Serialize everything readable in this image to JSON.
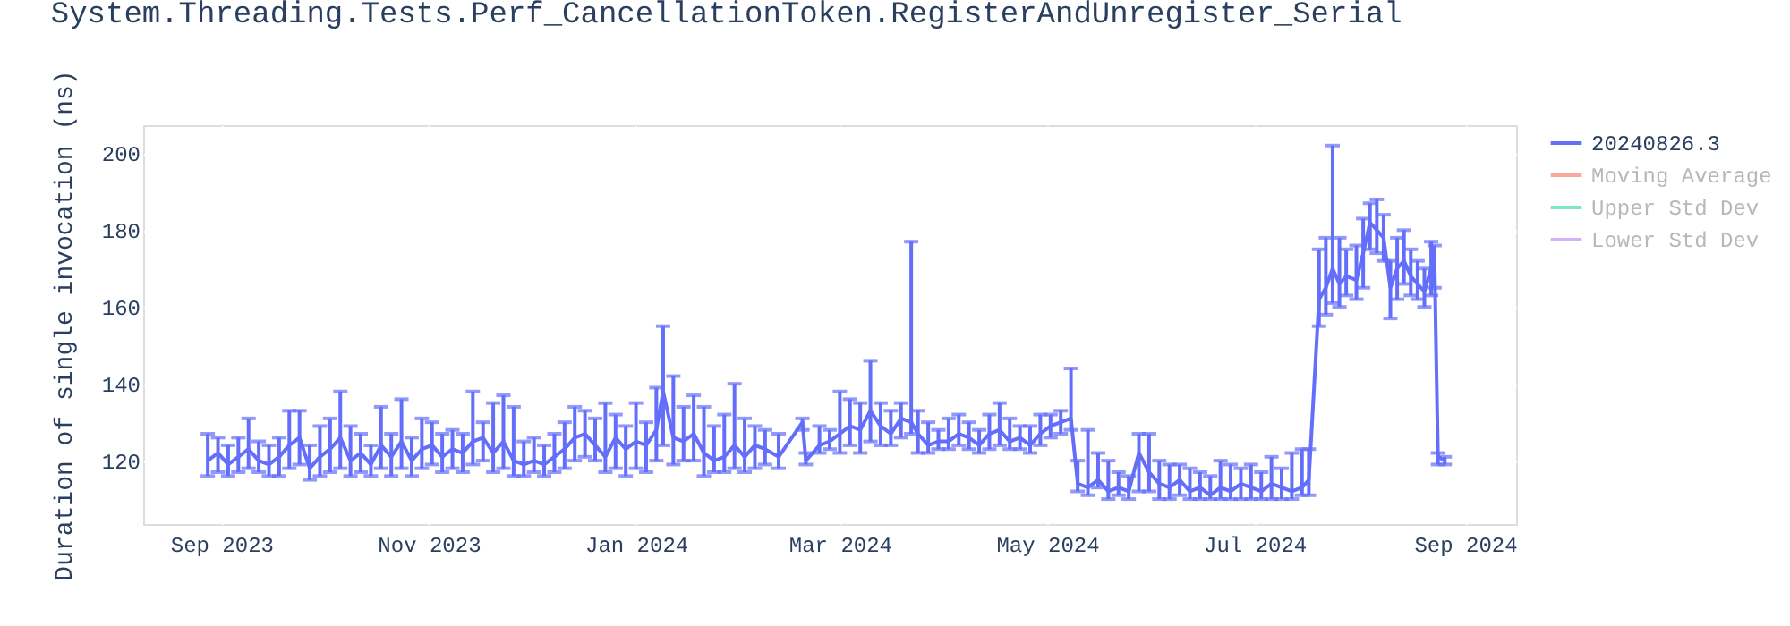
{
  "chart_data": {
    "type": "line",
    "title": "System.Threading.Tests.Perf_CancellationToken.RegisterAndUnregister_Serial",
    "ylabel": "Duration of single invocation (ns)",
    "xlim": [
      "2023-08-09",
      "2024-09-16"
    ],
    "xticks": [
      {
        "value": "2023-09-01",
        "label": "Sep 2023"
      },
      {
        "value": "2023-11-01",
        "label": "Nov 2023"
      },
      {
        "value": "2024-01-01",
        "label": "Jan 2024"
      },
      {
        "value": "2024-03-01",
        "label": "Mar 2024"
      },
      {
        "value": "2024-05-01",
        "label": "May 2024"
      },
      {
        "value": "2024-07-01",
        "label": "Jul 2024"
      },
      {
        "value": "2024-09-01",
        "label": "Sep 2024"
      }
    ],
    "ylim": [
      103.5,
      207.3
    ],
    "yticks": [
      120,
      140,
      160,
      180,
      200
    ],
    "grid": true,
    "legend": "right",
    "marker": "none",
    "line_style": "solid",
    "series": [
      {
        "name": "20240826.3",
        "color": "#636efa",
        "x": [
          "2023-08-28",
          "2023-08-31",
          "2023-09-03",
          "2023-09-06",
          "2023-09-09",
          "2023-09-12",
          "2023-09-15",
          "2023-09-18",
          "2023-09-21",
          "2023-09-24",
          "2023-09-27",
          "2023-09-30",
          "2023-10-03",
          "2023-10-06",
          "2023-10-09",
          "2023-10-12",
          "2023-10-15",
          "2023-10-18",
          "2023-10-21",
          "2023-10-24",
          "2023-10-27",
          "2023-10-30",
          "2023-11-02",
          "2023-11-05",
          "2023-11-08",
          "2023-11-11",
          "2023-11-14",
          "2023-11-17",
          "2023-11-20",
          "2023-11-23",
          "2023-11-26",
          "2023-11-29",
          "2023-12-02",
          "2023-12-05",
          "2023-12-08",
          "2023-12-11",
          "2023-12-14",
          "2023-12-17",
          "2023-12-20",
          "2023-12-23",
          "2023-12-26",
          "2023-12-29",
          "2024-01-01",
          "2024-01-04",
          "2024-01-07",
          "2024-01-09",
          "2024-01-12",
          "2024-01-15",
          "2024-01-18",
          "2024-01-21",
          "2024-01-24",
          "2024-01-27",
          "2024-01-30",
          "2024-02-02",
          "2024-02-05",
          "2024-02-08",
          "2024-02-12",
          "2024-02-19",
          "2024-02-20",
          "2024-02-24",
          "2024-02-27",
          "2024-03-01",
          "2024-03-04",
          "2024-03-07",
          "2024-03-10",
          "2024-03-13",
          "2024-03-16",
          "2024-03-19",
          "2024-03-22",
          "2024-03-24",
          "2024-03-27",
          "2024-03-30",
          "2024-04-02",
          "2024-04-05",
          "2024-04-08",
          "2024-04-11",
          "2024-04-14",
          "2024-04-17",
          "2024-04-20",
          "2024-04-23",
          "2024-04-26",
          "2024-04-29",
          "2024-05-02",
          "2024-05-05",
          "2024-05-08",
          "2024-05-10",
          "2024-05-13",
          "2024-05-16",
          "2024-05-19",
          "2024-05-22",
          "2024-05-25",
          "2024-05-28",
          "2024-05-31",
          "2024-06-03",
          "2024-06-06",
          "2024-06-09",
          "2024-06-12",
          "2024-06-15",
          "2024-06-18",
          "2024-06-21",
          "2024-06-24",
          "2024-06-27",
          "2024-06-30",
          "2024-07-03",
          "2024-07-06",
          "2024-07-09",
          "2024-07-12",
          "2024-07-15",
          "2024-07-17",
          "2024-07-20",
          "2024-07-22",
          "2024-07-24",
          "2024-07-26",
          "2024-07-28",
          "2024-07-31",
          "2024-08-02",
          "2024-08-04",
          "2024-08-06",
          "2024-08-08",
          "2024-08-10",
          "2024-08-12",
          "2024-08-14",
          "2024-08-16",
          "2024-08-18",
          "2024-08-20",
          "2024-08-22",
          "2024-08-23",
          "2024-08-24",
          "2024-08-26"
        ],
        "values": [
          120,
          122,
          119,
          121,
          123,
          120,
          119,
          121,
          124,
          126,
          118,
          121,
          123,
          126,
          120,
          122,
          119,
          124,
          121,
          125,
          120,
          123,
          124,
          121,
          123,
          122,
          125,
          126,
          122,
          125,
          120,
          119,
          120,
          119,
          121,
          123,
          126,
          127,
          124,
          121,
          126,
          123,
          125,
          124,
          128,
          138,
          126,
          125,
          127,
          122,
          120,
          121,
          124,
          121,
          124,
          123,
          121,
          130,
          120,
          124,
          125,
          127,
          129,
          128,
          133,
          129,
          127,
          131,
          130,
          127,
          124,
          125,
          125,
          127,
          126,
          124,
          127,
          128,
          125,
          126,
          124,
          127,
          129,
          130,
          131,
          114,
          113,
          115,
          112,
          113,
          112,
          122,
          117,
          114,
          113,
          115,
          112,
          113,
          111,
          113,
          112,
          114,
          113,
          112,
          114,
          113,
          112,
          113,
          115,
          162,
          165,
          170,
          166,
          168,
          167,
          174,
          182,
          180,
          178,
          165,
          170,
          172,
          168,
          166,
          164,
          170,
          172,
          121,
          120
        ],
        "errors": [
          [
            116,
            127
          ],
          [
            117,
            126
          ],
          [
            116,
            124
          ],
          [
            117,
            126
          ],
          [
            118,
            131
          ],
          [
            117,
            125
          ],
          [
            116,
            124
          ],
          [
            116,
            126
          ],
          [
            118,
            133
          ],
          [
            119,
            133
          ],
          [
            115,
            124
          ],
          [
            116,
            129
          ],
          [
            117,
            131
          ],
          [
            118,
            138
          ],
          [
            116,
            129
          ],
          [
            117,
            127
          ],
          [
            116,
            124
          ],
          [
            118,
            134
          ],
          [
            116,
            127
          ],
          [
            118,
            136
          ],
          [
            116,
            126
          ],
          [
            118,
            131
          ],
          [
            119,
            130
          ],
          [
            117,
            127
          ],
          [
            118,
            128
          ],
          [
            117,
            127
          ],
          [
            119,
            138
          ],
          [
            120,
            130
          ],
          [
            117,
            135
          ],
          [
            118,
            137
          ],
          [
            116,
            134
          ],
          [
            116,
            125
          ],
          [
            117,
            126
          ],
          [
            116,
            124
          ],
          [
            117,
            127
          ],
          [
            118,
            130
          ],
          [
            120,
            134
          ],
          [
            121,
            133
          ],
          [
            120,
            131
          ],
          [
            117,
            135
          ],
          [
            118,
            132
          ],
          [
            116,
            129
          ],
          [
            118,
            135
          ],
          [
            117,
            130
          ],
          [
            120,
            139
          ],
          [
            124,
            155
          ],
          [
            119,
            142
          ],
          [
            120,
            134
          ],
          [
            120,
            137
          ],
          [
            116,
            134
          ],
          [
            117,
            129
          ],
          [
            117,
            132
          ],
          [
            118,
            140
          ],
          [
            117,
            131
          ],
          [
            118,
            129
          ],
          [
            119,
            128
          ],
          [
            118,
            127
          ],
          [
            128,
            131
          ],
          [
            119,
            122
          ],
          [
            122,
            129
          ],
          [
            123,
            128
          ],
          [
            122,
            138
          ],
          [
            124,
            136
          ],
          [
            122,
            135
          ],
          [
            125,
            146
          ],
          [
            124,
            135
          ],
          [
            124,
            133
          ],
          [
            126,
            135
          ],
          [
            127,
            177
          ],
          [
            122,
            133
          ],
          [
            122,
            130
          ],
          [
            123,
            128
          ],
          [
            123,
            131
          ],
          [
            124,
            132
          ],
          [
            123,
            130
          ],
          [
            122,
            128
          ],
          [
            123,
            132
          ],
          [
            124,
            135
          ],
          [
            123,
            131
          ],
          [
            123,
            129
          ],
          [
            122,
            129
          ],
          [
            124,
            132
          ],
          [
            126,
            132
          ],
          [
            127,
            133
          ],
          [
            128,
            144
          ],
          [
            112,
            120
          ],
          [
            111,
            128
          ],
          [
            113,
            122
          ],
          [
            110,
            120
          ],
          [
            111,
            117
          ],
          [
            110,
            116
          ],
          [
            112,
            127
          ],
          [
            112,
            127
          ],
          [
            110,
            120
          ],
          [
            110,
            119
          ],
          [
            111,
            119
          ],
          [
            110,
            118
          ],
          [
            110,
            117
          ],
          [
            110,
            116
          ],
          [
            110,
            120
          ],
          [
            110,
            119
          ],
          [
            110,
            118
          ],
          [
            110,
            119
          ],
          [
            110,
            117
          ],
          [
            110,
            121
          ],
          [
            110,
            118
          ],
          [
            110,
            122
          ],
          [
            111,
            123
          ],
          [
            111,
            123
          ],
          [
            155,
            175
          ],
          [
            158,
            178
          ],
          [
            161,
            202
          ],
          [
            160,
            178
          ],
          [
            163,
            175
          ],
          [
            162,
            176
          ],
          [
            165,
            183
          ],
          [
            175,
            187
          ],
          [
            174,
            188
          ],
          [
            172,
            184
          ],
          [
            157,
            172
          ],
          [
            162,
            178
          ],
          [
            166,
            180
          ],
          [
            163,
            175
          ],
          [
            162,
            172
          ],
          [
            160,
            170
          ],
          [
            163,
            177
          ],
          [
            165,
            176
          ],
          [
            119,
            122
          ],
          [
            119,
            121
          ]
        ]
      },
      {
        "name": "Moving Average",
        "color": "#ef553b"
      },
      {
        "name": "Upper Std Dev",
        "color": "#00cc96"
      },
      {
        "name": "Lower Std Dev",
        "color": "#ab63fa"
      }
    ]
  }
}
